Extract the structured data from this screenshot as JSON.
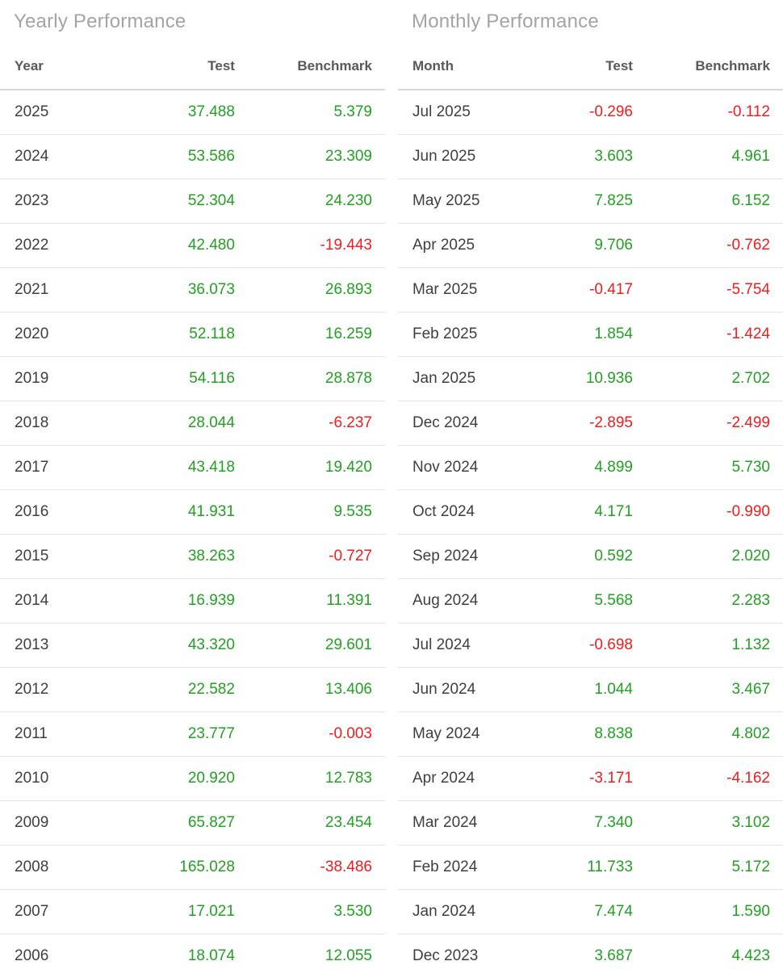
{
  "colors": {
    "positive": "#22a122",
    "negative": "#f41c1c",
    "title": "#a4a4a4",
    "header": "#595959",
    "label": "#3f3f3f",
    "divider": "#e3e3e3"
  },
  "chart_data": [
    {
      "type": "table",
      "title": "Yearly Performance",
      "columns": [
        "Year",
        "Test",
        "Benchmark"
      ],
      "rows": [
        [
          "2025",
          "37.488",
          "5.379"
        ],
        [
          "2024",
          "53.586",
          "23.309"
        ],
        [
          "2023",
          "52.304",
          "24.230"
        ],
        [
          "2022",
          "42.480",
          "-19.443"
        ],
        [
          "2021",
          "36.073",
          "26.893"
        ],
        [
          "2020",
          "52.118",
          "16.259"
        ],
        [
          "2019",
          "54.116",
          "28.878"
        ],
        [
          "2018",
          "28.044",
          "-6.237"
        ],
        [
          "2017",
          "43.418",
          "19.420"
        ],
        [
          "2016",
          "41.931",
          "9.535"
        ],
        [
          "2015",
          "38.263",
          "-0.727"
        ],
        [
          "2014",
          "16.939",
          "11.391"
        ],
        [
          "2013",
          "43.320",
          "29.601"
        ],
        [
          "2012",
          "22.582",
          "13.406"
        ],
        [
          "2011",
          "23.777",
          "-0.003"
        ],
        [
          "2010",
          "20.920",
          "12.783"
        ],
        [
          "2009",
          "65.827",
          "23.454"
        ],
        [
          "2008",
          "165.028",
          "-38.486"
        ],
        [
          "2007",
          "17.021",
          "3.530"
        ],
        [
          "2006",
          "18.074",
          "12.055"
        ]
      ]
    },
    {
      "type": "table",
      "title": "Monthly Performance",
      "columns": [
        "Month",
        "Test",
        "Benchmark"
      ],
      "rows": [
        [
          "Jul 2025",
          "-0.296",
          "-0.112"
        ],
        [
          "Jun 2025",
          "3.603",
          "4.961"
        ],
        [
          "May 2025",
          "7.825",
          "6.152"
        ],
        [
          "Apr 2025",
          "9.706",
          "-0.762"
        ],
        [
          "Mar 2025",
          "-0.417",
          "-5.754"
        ],
        [
          "Feb 2025",
          "1.854",
          "-1.424"
        ],
        [
          "Jan 2025",
          "10.936",
          "2.702"
        ],
        [
          "Dec 2024",
          "-2.895",
          "-2.499"
        ],
        [
          "Nov 2024",
          "4.899",
          "5.730"
        ],
        [
          "Oct 2024",
          "4.171",
          "-0.990"
        ],
        [
          "Sep 2024",
          "0.592",
          "2.020"
        ],
        [
          "Aug 2024",
          "5.568",
          "2.283"
        ],
        [
          "Jul 2024",
          "-0.698",
          "1.132"
        ],
        [
          "Jun 2024",
          "1.044",
          "3.467"
        ],
        [
          "May 2024",
          "8.838",
          "4.802"
        ],
        [
          "Apr 2024",
          "-3.171",
          "-4.162"
        ],
        [
          "Mar 2024",
          "7.340",
          "3.102"
        ],
        [
          "Feb 2024",
          "11.733",
          "5.172"
        ],
        [
          "Jan 2024",
          "7.474",
          "1.590"
        ],
        [
          "Dec 2023",
          "3.687",
          "4.423"
        ]
      ]
    }
  ]
}
